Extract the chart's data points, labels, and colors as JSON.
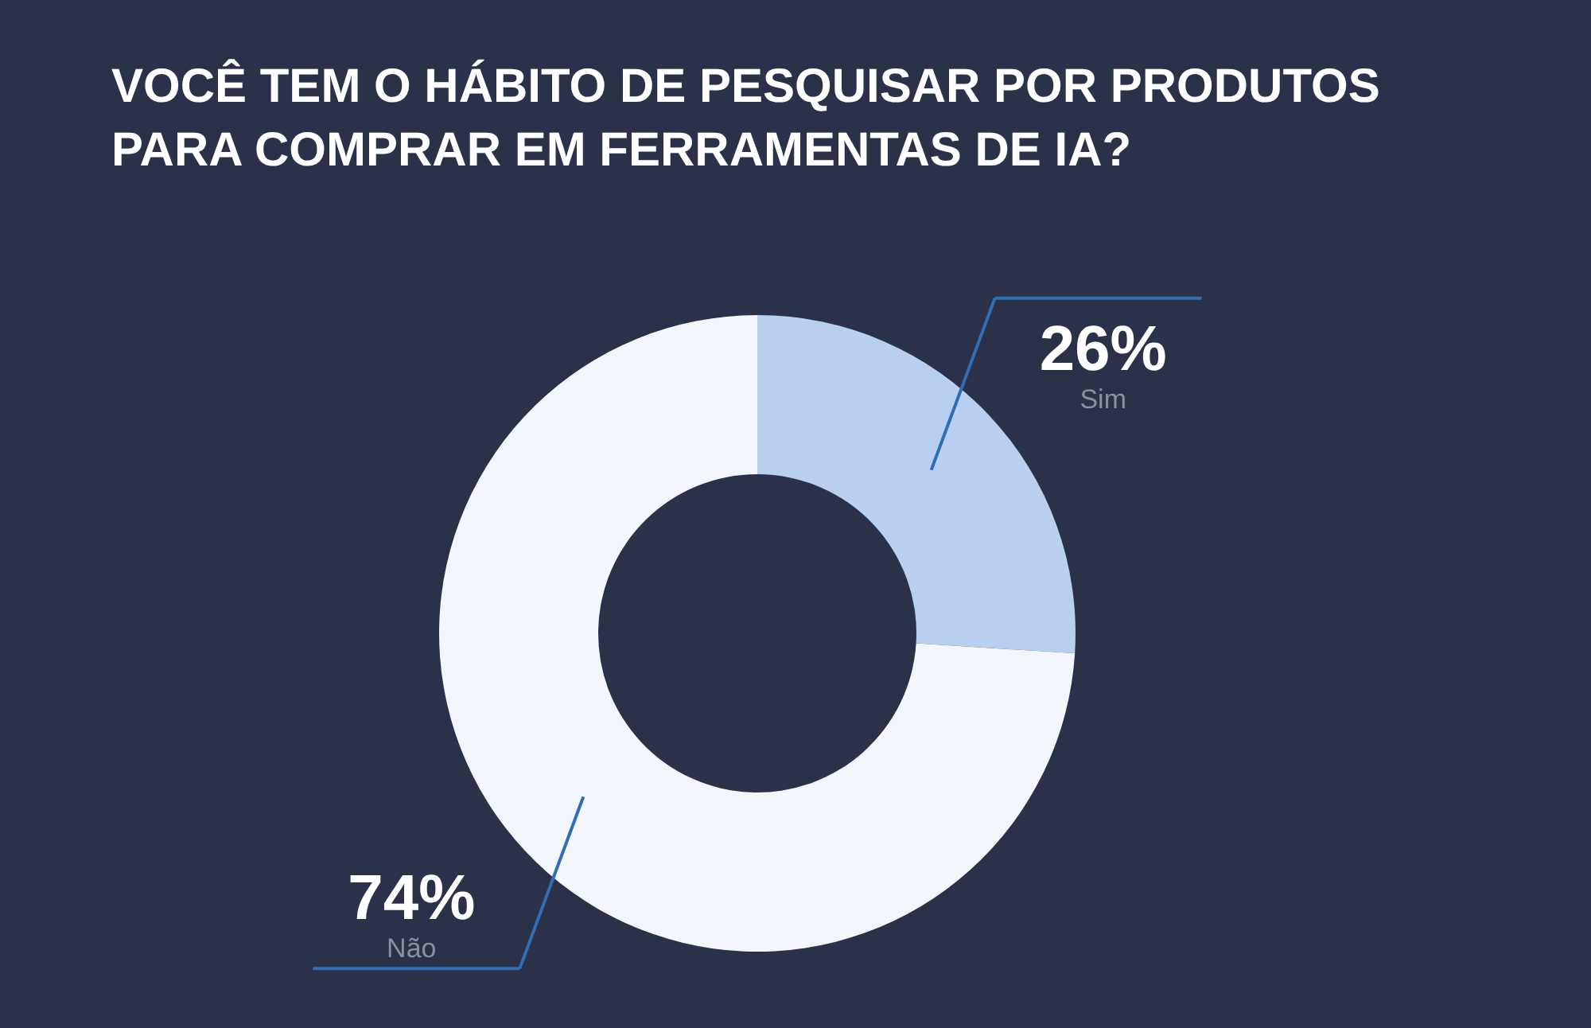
{
  "chart_data": {
    "type": "donut",
    "title": [
      "VOCÊ TEM O HÁBITO DE PESQUISAR POR PRODUTOS",
      "PARA COMPRAR EM FERRAMENTAS DE IA?"
    ],
    "categories": [
      "Sim",
      "Não"
    ],
    "values": [
      26,
      74
    ],
    "colors": [
      "#b8cff0",
      "#f3f7fd"
    ],
    "value_labels": [
      "26%",
      "74%"
    ],
    "legend": false
  }
}
